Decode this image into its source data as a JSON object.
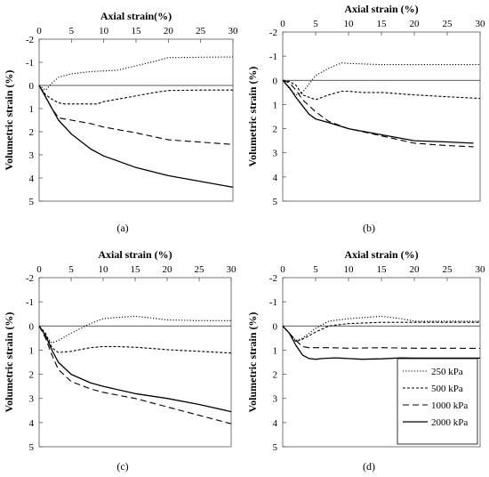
{
  "chart_data": [
    {
      "type": "line",
      "caption": "(a)",
      "xlabel": "Axial strain(%)",
      "ylabel": "Volumetric strain (%)",
      "xlim": [
        0,
        30
      ],
      "ylim": [
        -2,
        5
      ],
      "y_inverted": true,
      "x_axis_position": "top",
      "xticks": [
        "0",
        "5",
        "10",
        "15",
        "20",
        "25",
        "30"
      ],
      "yticks": [
        "-2",
        "-1",
        "0",
        "1",
        "2",
        "3",
        "4",
        "5"
      ],
      "series": [
        {
          "name": "250 kPa",
          "style": "dotted",
          "x": [
            0,
            1,
            2,
            3,
            5,
            8,
            12,
            15,
            18,
            20,
            25,
            30
          ],
          "y": [
            0,
            0.2,
            -0.1,
            -0.35,
            -0.5,
            -0.6,
            -0.65,
            -0.85,
            -1.05,
            -1.2,
            -1.22,
            -1.23
          ]
        },
        {
          "name": "500 kPa",
          "style": "short-dash",
          "x": [
            0,
            1,
            2,
            3,
            4,
            6,
            9,
            10,
            12,
            15,
            18,
            20,
            25,
            30
          ],
          "y": [
            0,
            0.4,
            0.6,
            0.75,
            0.8,
            0.8,
            0.8,
            0.7,
            0.6,
            0.45,
            0.3,
            0.22,
            0.2,
            0.2
          ]
        },
        {
          "name": "1000 kPa",
          "style": "long-dash",
          "x": [
            0,
            1,
            2,
            3,
            5,
            8,
            10,
            15,
            20,
            25,
            30
          ],
          "y": [
            0,
            0.5,
            1.0,
            1.4,
            1.5,
            1.65,
            1.8,
            2.05,
            2.35,
            2.45,
            2.55
          ]
        },
        {
          "name": "2000 kPa",
          "style": "solid",
          "x": [
            0,
            1,
            2,
            3,
            5,
            8,
            10,
            15,
            20,
            25,
            30
          ],
          "y": [
            0,
            0.5,
            1.0,
            1.5,
            2.1,
            2.75,
            3.05,
            3.55,
            3.9,
            4.15,
            4.4
          ]
        }
      ]
    },
    {
      "type": "line",
      "caption": "(b)",
      "xlabel": "Axial strain (%)",
      "ylabel": "Volumetric strain (%)",
      "xlim": [
        0,
        30
      ],
      "ylim": [
        -2,
        5
      ],
      "y_inverted": true,
      "x_axis_position": "top",
      "xticks": [
        "0",
        "5",
        "10",
        "15",
        "20",
        "25",
        "30"
      ],
      "yticks": [
        "-2",
        "-1",
        "0",
        "1",
        "2",
        "3",
        "4",
        "5"
      ],
      "series": [
        {
          "name": "250 kPa",
          "style": "dotted",
          "x": [
            0,
            1,
            2,
            3,
            5,
            7,
            8,
            9,
            10,
            15,
            20,
            25,
            30
          ],
          "y": [
            0,
            0.35,
            0.6,
            0.5,
            -0.2,
            -0.5,
            -0.62,
            -0.72,
            -0.7,
            -0.65,
            -0.65,
            -0.65,
            -0.65
          ]
        },
        {
          "name": "500 kPa",
          "style": "short-dash",
          "x": [
            0,
            1,
            2,
            3,
            5,
            7,
            9,
            10,
            12,
            15,
            20,
            25,
            30
          ],
          "y": [
            0,
            0.05,
            0.2,
            0.6,
            0.8,
            0.6,
            0.45,
            0.45,
            0.5,
            0.5,
            0.6,
            0.68,
            0.75
          ]
        },
        {
          "name": "1000 kPa",
          "style": "long-dash",
          "x": [
            0,
            1,
            2,
            3,
            5,
            7,
            10,
            15,
            20,
            25,
            29
          ],
          "y": [
            0,
            0.1,
            0.4,
            0.8,
            1.3,
            1.7,
            2.0,
            2.3,
            2.6,
            2.7,
            2.75
          ]
        },
        {
          "name": "2000 kPa",
          "style": "solid",
          "x": [
            0,
            1,
            2,
            3,
            4,
            5,
            7,
            10,
            15,
            20,
            25,
            29
          ],
          "y": [
            0,
            0.3,
            0.7,
            1.05,
            1.4,
            1.6,
            1.75,
            2.0,
            2.25,
            2.5,
            2.55,
            2.6
          ]
        }
      ]
    },
    {
      "type": "line",
      "caption": "(c)",
      "xlabel": "Axial strain (%)",
      "ylabel": "Volumetric strain (%)",
      "xlim": [
        0,
        30
      ],
      "ylim": [
        -2,
        5
      ],
      "y_inverted": true,
      "x_axis_position": "top",
      "xticks": [
        "0",
        "5",
        "10",
        "15",
        "20",
        "25",
        "30"
      ],
      "yticks": [
        "-2",
        "-1",
        "0",
        "1",
        "2",
        "3",
        "4",
        "5"
      ],
      "series": [
        {
          "name": "250 kPa",
          "style": "dotted",
          "x": [
            0,
            1,
            2,
            3,
            5,
            8,
            10,
            12,
            15,
            17,
            20,
            25,
            30
          ],
          "y": [
            0,
            0.4,
            0.7,
            0.6,
            0.3,
            -0.1,
            -0.3,
            -0.35,
            -0.4,
            -0.35,
            -0.25,
            -0.22,
            -0.22
          ]
        },
        {
          "name": "500 kPa",
          "style": "short-dash",
          "x": [
            0,
            1,
            2,
            3,
            5,
            8,
            10,
            12,
            15,
            20,
            25,
            30
          ],
          "y": [
            0,
            0.3,
            0.9,
            1.1,
            1.05,
            0.9,
            0.85,
            0.85,
            0.88,
            0.98,
            1.05,
            1.12
          ]
        },
        {
          "name": "1000 kPa",
          "style": "long-dash",
          "x": [
            0,
            1,
            2,
            3,
            5,
            8,
            10,
            15,
            20,
            25,
            30
          ],
          "y": [
            0,
            0.5,
            1.2,
            1.8,
            2.3,
            2.6,
            2.75,
            3.0,
            3.35,
            3.7,
            4.05
          ]
        },
        {
          "name": "2000 kPa",
          "style": "solid",
          "x": [
            0,
            1,
            2,
            3,
            5,
            8,
            10,
            15,
            20,
            25,
            30
          ],
          "y": [
            0,
            0.4,
            1.0,
            1.5,
            2.0,
            2.35,
            2.5,
            2.8,
            3.0,
            3.25,
            3.55
          ]
        }
      ]
    },
    {
      "type": "line",
      "caption": "(d)",
      "xlabel": "Axial strain (%)",
      "ylabel": "Volumetric strain (%)",
      "xlim": [
        0,
        30
      ],
      "ylim": [
        -2,
        5
      ],
      "y_inverted": true,
      "x_axis_position": "top",
      "xticks": [
        "0",
        "5",
        "10",
        "15",
        "20",
        "25",
        "30"
      ],
      "yticks": [
        "-2",
        "-1",
        "0",
        "1",
        "2",
        "3",
        "4",
        "5"
      ],
      "legend": {
        "placement": "bottom-right",
        "entries": [
          "250 kPa",
          "500 kPa",
          "1000 kPa",
          "2000 kPa"
        ]
      },
      "series": [
        {
          "name": "250 kPa",
          "style": "dotted",
          "x": [
            0,
            1,
            2,
            3,
            5,
            7,
            10,
            15,
            18,
            20,
            25,
            30
          ],
          "y": [
            0,
            0.3,
            0.6,
            0.5,
            0.1,
            -0.2,
            -0.3,
            -0.4,
            -0.3,
            -0.2,
            -0.2,
            -0.2
          ]
        },
        {
          "name": "500 kPa",
          "style": "short-dash",
          "x": [
            0,
            1,
            2,
            3,
            5,
            7,
            10,
            15,
            20,
            25,
            30
          ],
          "y": [
            0,
            0.3,
            0.65,
            0.55,
            0.25,
            0.0,
            -0.1,
            -0.15,
            -0.15,
            -0.15,
            -0.15
          ]
        },
        {
          "name": "1000 kPa",
          "style": "long-dash",
          "x": [
            0,
            1,
            2,
            3,
            4,
            5,
            7,
            10,
            15,
            20,
            25,
            30
          ],
          "y": [
            0,
            0.3,
            0.6,
            0.85,
            0.9,
            0.9,
            0.9,
            0.92,
            0.9,
            0.92,
            0.92,
            0.93
          ]
        },
        {
          "name": "2000 kPa",
          "style": "solid",
          "x": [
            0,
            1,
            2,
            3,
            4,
            5,
            6,
            8,
            10,
            12,
            15,
            18,
            20,
            25,
            30
          ],
          "y": [
            0,
            0.3,
            0.8,
            1.2,
            1.35,
            1.38,
            1.35,
            1.32,
            1.35,
            1.38,
            1.36,
            1.32,
            1.33,
            1.33,
            1.33
          ]
        }
      ]
    }
  ]
}
